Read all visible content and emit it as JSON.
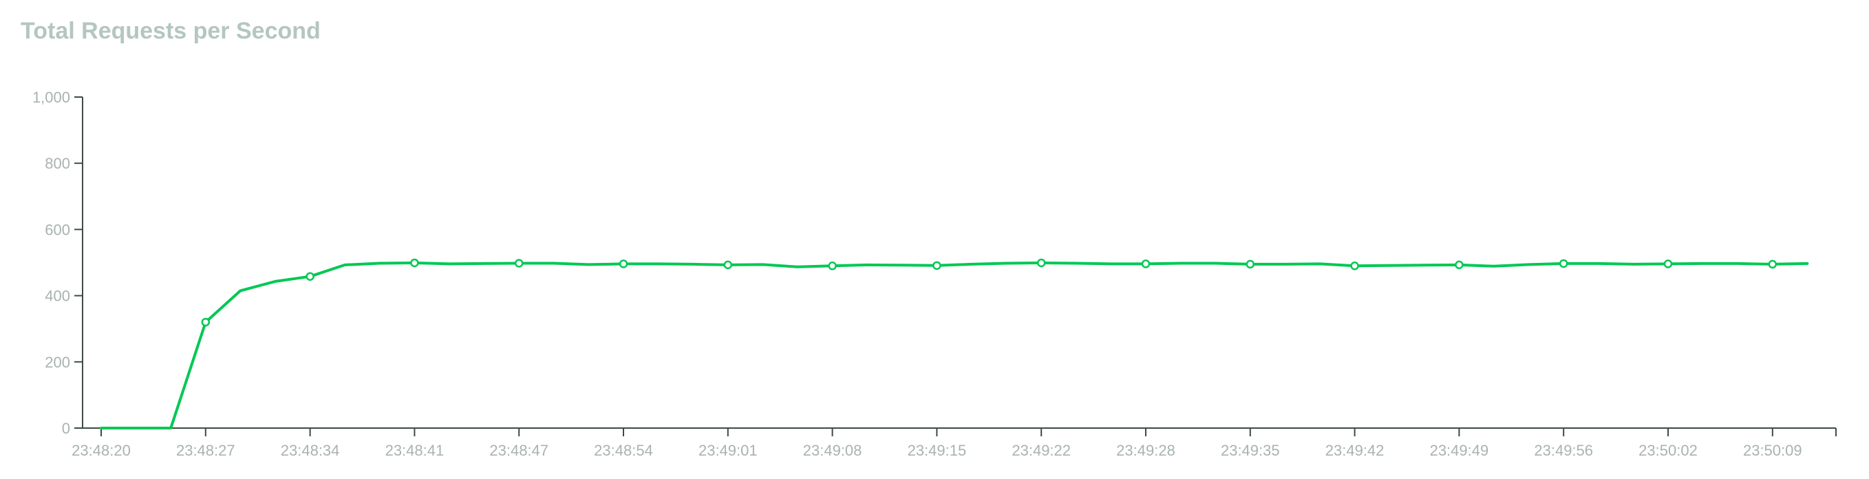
{
  "chart_data": {
    "type": "line",
    "title": "Total Requests per Second",
    "xlabel": "",
    "ylabel": "",
    "ylim": [
      0,
      1000
    ],
    "yticks": [
      "0",
      "200",
      "400",
      "600",
      "800",
      "1,000"
    ],
    "yticks_values": [
      0,
      200,
      400,
      600,
      800,
      1000
    ],
    "xticks": [
      "23:48:20",
      "23:48:27",
      "23:48:34",
      "23:48:41",
      "23:48:47",
      "23:48:54",
      "23:49:01",
      "23:49:08",
      "23:49:15",
      "23:49:22",
      "23:49:28",
      "23:49:35",
      "23:49:42",
      "23:49:49",
      "23:49:56",
      "23:50:02",
      "23:50:09"
    ],
    "grid": false,
    "legend": "none",
    "line_color": "#00c853",
    "series": [
      {
        "values": [
          0,
          0,
          0,
          320,
          415,
          443,
          458,
          493,
          498,
          499,
          496,
          497,
          498,
          498,
          494,
          496,
          496,
          495,
          493,
          494,
          487,
          490,
          493,
          492,
          491,
          495,
          498,
          499,
          498,
          496,
          496,
          498,
          498,
          495,
          495,
          496,
          490,
          491,
          492,
          493,
          489,
          494,
          497,
          497,
          495,
          496,
          497,
          497,
          495,
          497
        ],
        "markers": [
          3,
          6,
          9,
          12,
          15,
          18,
          21,
          24,
          27,
          30,
          33,
          36,
          39,
          42,
          45,
          48
        ]
      }
    ]
  }
}
